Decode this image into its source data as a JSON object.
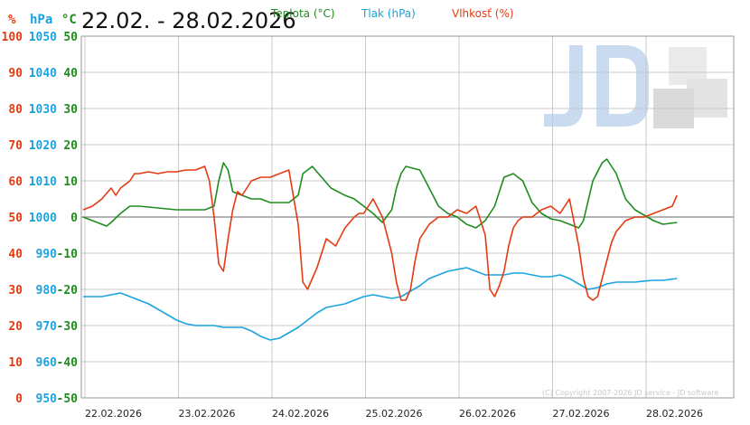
{
  "chart_data": {
    "type": "line",
    "title": "22.02. - 28.02.2026",
    "units": {
      "humidity": "%",
      "pressure": "hPa",
      "temperature": "°C"
    },
    "axes": {
      "humidity": {
        "ticks": [
          100,
          90,
          80,
          70,
          60,
          50,
          40,
          30,
          20,
          10,
          0
        ],
        "range": [
          0,
          100
        ],
        "color": "#e53a12"
      },
      "pressure": {
        "ticks": [
          1050,
          1040,
          1030,
          1020,
          1010,
          1000,
          990,
          980,
          970,
          960,
          950
        ],
        "range": [
          950,
          1050
        ],
        "color": "#1aa3e0"
      },
      "temperature": {
        "ticks": [
          50,
          40,
          30,
          20,
          10,
          0,
          -10,
          -20,
          -30,
          -40,
          -50
        ],
        "range": [
          -50,
          50
        ],
        "color": "#1e8c1e"
      }
    },
    "x_labels": [
      "22.02.2026",
      "23.02.2026",
      "24.02.2026",
      "25.02.2026",
      "26.02.2026",
      "27.02.2026",
      "28.02.2026"
    ],
    "grid": true,
    "legend_position": "top",
    "series": [
      {
        "name": "Teplota (°C)",
        "color": "#1e8c1e",
        "axis": "temperature",
        "x": [
          0,
          0.1,
          0.2,
          0.25,
          0.3,
          0.4,
          0.5,
          0.6,
          0.8,
          1.0,
          1.2,
          1.3,
          1.4,
          1.45,
          1.5,
          1.55,
          1.6,
          1.7,
          1.8,
          1.9,
          2.0,
          2.2,
          2.3,
          2.35,
          2.45,
          2.55,
          2.65,
          2.8,
          2.9,
          3.0,
          3.1,
          3.2,
          3.3,
          3.35,
          3.4,
          3.45,
          3.6,
          3.7,
          3.8,
          3.9,
          4.0,
          4.1,
          4.2,
          4.3,
          4.4,
          4.5,
          4.6,
          4.7,
          4.8,
          4.9,
          5.0,
          5.1,
          5.2,
          5.3,
          5.35,
          5.45,
          5.55,
          5.6,
          5.7,
          5.8,
          5.9,
          6.0,
          6.1,
          6.2,
          6.35
        ],
        "values": [
          0,
          -1,
          -2,
          -2.5,
          -1.5,
          1,
          3,
          3,
          2.5,
          2,
          2,
          2,
          3,
          10,
          15,
          13,
          7,
          6,
          5,
          5,
          4,
          4,
          6,
          12,
          14,
          11,
          8,
          6,
          5,
          3,
          1,
          -1.5,
          2,
          8,
          12,
          14,
          13,
          8,
          3,
          1,
          0,
          -2,
          -3,
          -1,
          3,
          11,
          12,
          10,
          4,
          1,
          -0.5,
          -1,
          -2,
          -3,
          -1,
          10,
          15,
          16,
          12,
          5,
          2,
          0.5,
          -1,
          -2,
          -1.5
        ]
      },
      {
        "name": "Tlak (hPa)",
        "color": "#1aa3e0",
        "axis": "pressure",
        "x": [
          0,
          0.1,
          0.2,
          0.3,
          0.4,
          0.5,
          0.6,
          0.7,
          0.8,
          0.9,
          1.0,
          1.1,
          1.2,
          1.3,
          1.4,
          1.5,
          1.6,
          1.7,
          1.8,
          1.9,
          2.0,
          2.1,
          2.2,
          2.3,
          2.4,
          2.5,
          2.6,
          2.7,
          2.8,
          2.9,
          3.0,
          3.1,
          3.2,
          3.3,
          3.4,
          3.5,
          3.6,
          3.7,
          3.8,
          3.9,
          4.0,
          4.1,
          4.2,
          4.3,
          4.4,
          4.5,
          4.6,
          4.7,
          4.8,
          4.9,
          5.0,
          5.1,
          5.2,
          5.3,
          5.4,
          5.5,
          5.6,
          5.7,
          5.8,
          5.9,
          6.0,
          6.1,
          6.2,
          6.35
        ],
        "values": [
          978,
          978,
          978,
          978.5,
          979,
          978,
          977,
          976,
          974.5,
          973,
          971.5,
          970.5,
          970,
          970,
          970,
          969.5,
          969.5,
          969.5,
          968.5,
          967,
          966,
          966.5,
          968,
          969.5,
          971.5,
          973.5,
          975,
          975.5,
          976,
          977,
          978,
          978.5,
          978,
          977.5,
          978,
          979.5,
          981,
          983,
          984,
          985,
          985.5,
          986,
          985,
          984,
          984,
          984,
          984.5,
          984.5,
          984,
          983.5,
          983.5,
          984,
          983,
          981.5,
          980,
          980.5,
          981.5,
          982,
          982,
          982,
          982.3,
          982.5,
          982.5,
          983
        ]
      },
      {
        "name": "Vlhkosť (%)",
        "color": "#e53a12",
        "axis": "humidity",
        "x": [
          0,
          0.1,
          0.2,
          0.3,
          0.35,
          0.4,
          0.45,
          0.5,
          0.55,
          0.6,
          0.7,
          0.8,
          0.9,
          1.0,
          1.1,
          1.2,
          1.3,
          1.35,
          1.4,
          1.45,
          1.5,
          1.55,
          1.6,
          1.65,
          1.7,
          1.75,
          1.8,
          1.9,
          2.0,
          2.1,
          2.2,
          2.3,
          2.35,
          2.4,
          2.45,
          2.5,
          2.55,
          2.6,
          2.65,
          2.7,
          2.8,
          2.9,
          2.95,
          3.0,
          3.1,
          3.2,
          3.3,
          3.35,
          3.4,
          3.45,
          3.5,
          3.55,
          3.6,
          3.7,
          3.8,
          3.9,
          4.0,
          4.1,
          4.2,
          4.3,
          4.35,
          4.4,
          4.45,
          4.5,
          4.55,
          4.6,
          4.65,
          4.7,
          4.8,
          4.9,
          5.0,
          5.1,
          5.2,
          5.3,
          5.35,
          5.4,
          5.45,
          5.5,
          5.55,
          5.6,
          5.65,
          5.7,
          5.8,
          5.9,
          6.0,
          6.1,
          6.2,
          6.3,
          6.35
        ],
        "values": [
          52,
          53,
          55,
          58,
          56,
          58,
          59,
          60,
          62,
          62,
          62.5,
          62,
          62.5,
          62.5,
          63,
          63,
          64,
          60,
          50,
          37,
          35,
          44,
          52,
          57,
          56,
          58,
          60,
          61,
          61,
          62,
          63,
          48,
          32,
          30,
          33,
          36,
          40,
          44,
          43,
          42,
          47,
          50,
          51,
          51,
          55,
          50,
          40,
          32,
          27,
          27,
          30,
          38,
          44,
          48,
          50,
          50,
          52,
          51,
          53,
          45,
          30,
          28,
          31,
          35,
          42,
          47,
          49,
          50,
          50,
          52,
          53,
          51,
          55,
          42,
          33,
          28,
          27,
          28,
          33,
          38,
          43,
          46,
          49,
          50,
          50,
          51,
          52,
          53,
          56
        ]
      }
    ]
  },
  "legend": {
    "temperature_label": "Teplota (°C)",
    "pressure_label": "Tlak (hPa)",
    "humidity_label": "Vlhkosť (%)"
  },
  "copyright": "(C) Copyright 2007-2026 JD service - JD software",
  "watermark": "JD"
}
